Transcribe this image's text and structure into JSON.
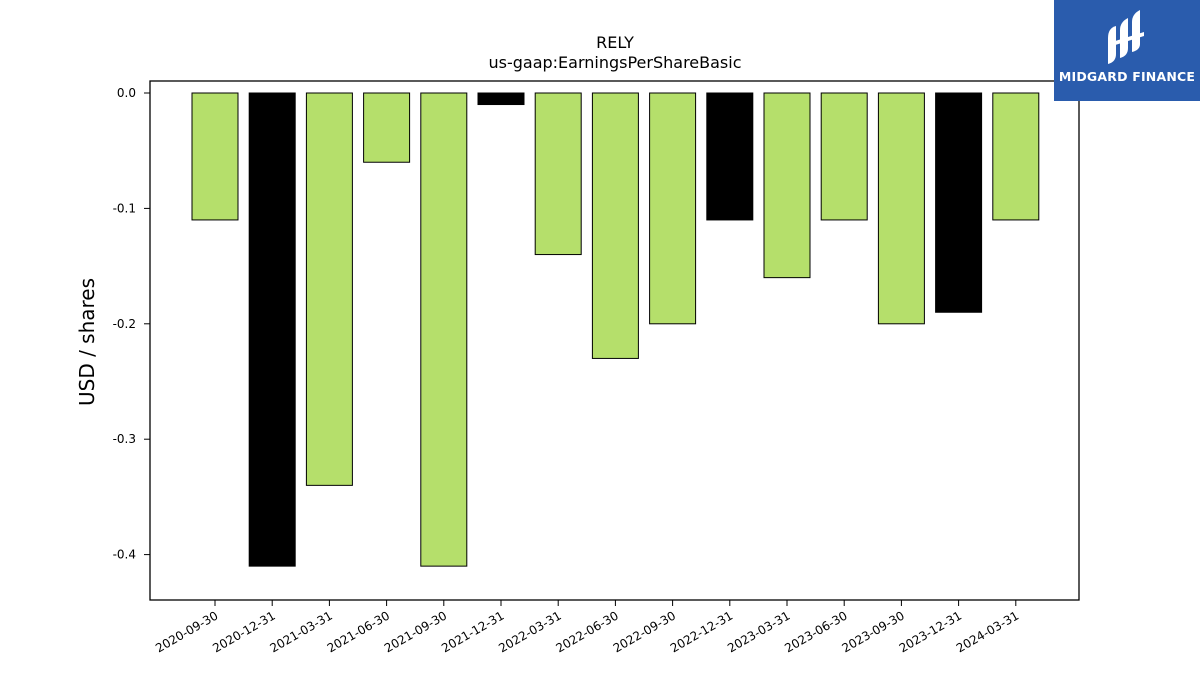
{
  "chart_data": {
    "type": "bar",
    "title": "RELY",
    "subtitle": "us-gaap:EarningsPerShareBasic",
    "xlabel": "",
    "ylabel": "USD / shares",
    "ylim": [
      -0.44,
      0.01
    ],
    "yticks": [
      0.0,
      -0.1,
      -0.2,
      -0.3,
      -0.4
    ],
    "ytick_labels": [
      "0.0",
      "-0.1",
      "-0.2",
      "-0.3",
      "-0.4"
    ],
    "grid": false,
    "categories": [
      "2020-09-30",
      "2020-12-31",
      "2021-03-31",
      "2021-06-30",
      "2021-09-30",
      "2021-12-31",
      "2022-03-31",
      "2022-06-30",
      "2022-09-30",
      "2022-12-31",
      "2023-03-31",
      "2023-06-30",
      "2023-09-30",
      "2023-12-31",
      "2024-03-31"
    ],
    "values": [
      -0.11,
      -0.41,
      -0.34,
      -0.06,
      -0.41,
      -0.01,
      -0.14,
      -0.23,
      -0.2,
      -0.11,
      -0.16,
      -0.11,
      -0.2,
      -0.19,
      -0.11
    ],
    "bar_colors": [
      "#b5df6b",
      "#000000",
      "#b5df6b",
      "#b5df6b",
      "#b5df6b",
      "#000000",
      "#b5df6b",
      "#b5df6b",
      "#b5df6b",
      "#000000",
      "#b5df6b",
      "#b5df6b",
      "#b5df6b",
      "#000000",
      "#b5df6b"
    ]
  },
  "logo": {
    "text": "MIDGARD FINANCE",
    "color": "#2a5cad"
  }
}
